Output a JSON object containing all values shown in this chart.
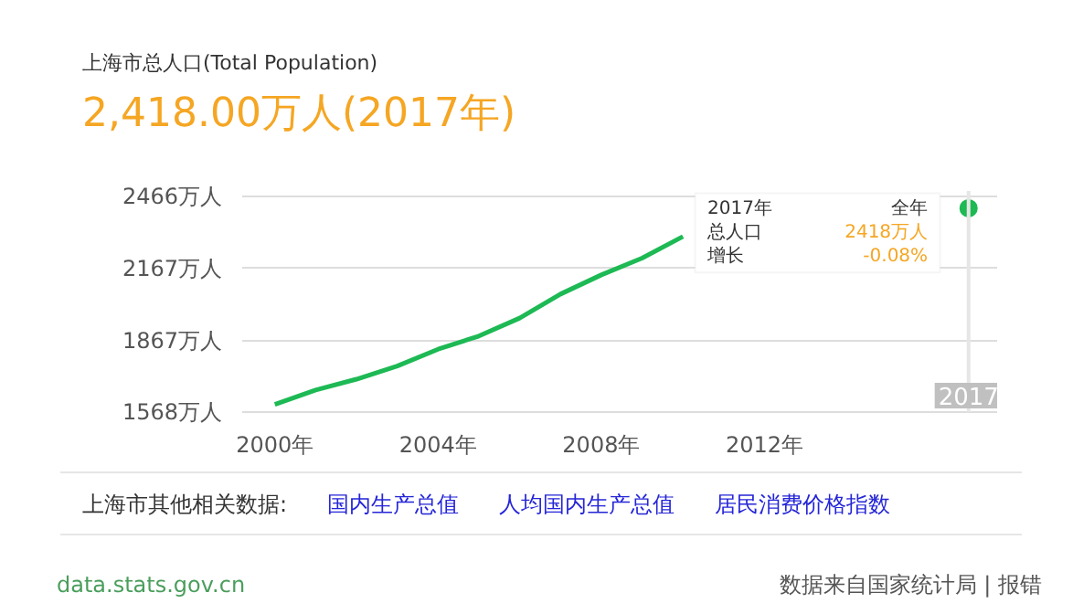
{
  "chart_data": {
    "type": "line",
    "title": "上海市总人口(Total Population)",
    "subtitle": "2,418.00万人(2017年)",
    "series": [
      {
        "color": "#1db954",
        "x": [
          2000,
          2001,
          2002,
          2003,
          2004,
          2005,
          2006,
          2007,
          2008,
          2009,
          2010
        ],
        "values": [
          1600,
          1660,
          1705,
          1760,
          1830,
          1885,
          1960,
          2060,
          2140,
          2210,
          2300
        ]
      },
      {
        "type": "scatter",
        "color": "#1db954",
        "x": [
          2017
        ],
        "values": [
          2418
        ]
      }
    ],
    "xlim": [
      1999.2,
      2017.7
    ],
    "ylim": [
      1568,
      2490
    ],
    "xticks": [
      {
        "value": 2000,
        "label": "2000年"
      },
      {
        "value": 2004,
        "label": "2004年"
      },
      {
        "value": 2008,
        "label": "2008年"
      },
      {
        "value": 2012,
        "label": "2012年"
      }
    ],
    "yticks": [
      {
        "value": 1568,
        "label": "1568万人"
      },
      {
        "value": 1867,
        "label": "1867万人"
      },
      {
        "value": 2167,
        "label": "2167万人"
      },
      {
        "value": 2466,
        "label": "2466万人"
      }
    ],
    "grid": "y",
    "ref_lines": [
      {
        "axis": "x",
        "value": 2017,
        "label": "2017",
        "color": "#e6e6e6"
      }
    ],
    "annotations": [
      "2017年",
      "全年",
      "总人口",
      "2418万人",
      "增长",
      "-0.08%",
      "上海市其他相关数据:",
      "国内生产总值",
      "人均国内生产总值",
      "居民消费价格指数",
      "data.stats.gov.cn",
      "数据来自国家统计局 | 报错"
    ]
  }
}
